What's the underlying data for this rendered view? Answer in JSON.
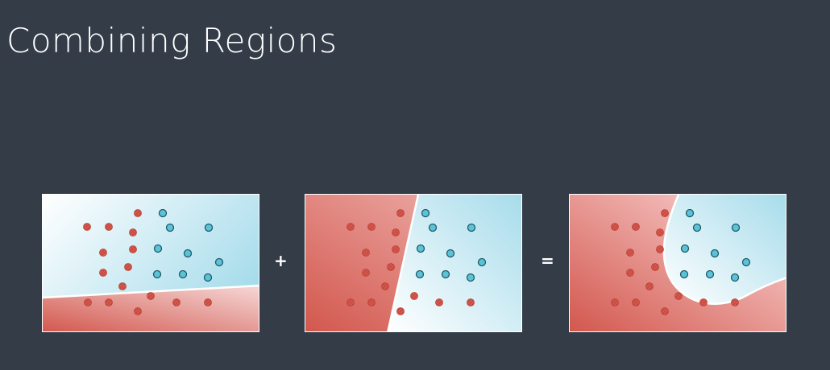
{
  "title": "Combining Regions",
  "operators": {
    "plus": "+",
    "equals": "="
  },
  "colors": {
    "background": "#333c47",
    "red_point": "#d6564b",
    "blue_point": "#5bc3d8",
    "red_region_dark": "#d2574d",
    "red_region_light": "#f6d8d7",
    "blue_region_dark": "#a7dceb",
    "blue_region_light": "#ffffff"
  },
  "panels": [
    {
      "id": "left",
      "red": [
        [
          55,
          40
        ],
        [
          82,
          40
        ],
        [
          118,
          23
        ],
        [
          112,
          47
        ],
        [
          75,
          72
        ],
        [
          112,
          68
        ],
        [
          106,
          90
        ],
        [
          75,
          97
        ],
        [
          99,
          114
        ],
        [
          56,
          134
        ],
        [
          82,
          134
        ],
        [
          118,
          145
        ],
        [
          134,
          126
        ],
        [
          166,
          134
        ],
        [
          205,
          134
        ]
      ],
      "blue": [
        [
          149,
          23
        ],
        [
          158,
          41
        ],
        [
          206,
          41
        ],
        [
          143,
          67
        ],
        [
          180,
          73
        ],
        [
          219,
          84
        ],
        [
          142,
          99
        ],
        [
          174,
          99
        ],
        [
          205,
          103
        ]
      ]
    },
    {
      "id": "mid",
      "red": [
        [
          56,
          40
        ],
        [
          82,
          40
        ],
        [
          118,
          23
        ],
        [
          112,
          47
        ],
        [
          75,
          72
        ],
        [
          112,
          68
        ],
        [
          106,
          90
        ],
        [
          75,
          97
        ],
        [
          99,
          114
        ],
        [
          56,
          134
        ],
        [
          82,
          134
        ],
        [
          135,
          126
        ],
        [
          166,
          134
        ],
        [
          205,
          134
        ],
        [
          118,
          145
        ]
      ],
      "blue": [
        [
          149,
          23
        ],
        [
          158,
          41
        ],
        [
          206,
          41
        ],
        [
          143,
          67
        ],
        [
          180,
          73
        ],
        [
          219,
          84
        ],
        [
          142,
          99
        ],
        [
          174,
          99
        ],
        [
          205,
          103
        ]
      ]
    },
    {
      "id": "right",
      "red": [
        [
          56,
          40
        ],
        [
          82,
          40
        ],
        [
          118,
          23
        ],
        [
          112,
          47
        ],
        [
          75,
          72
        ],
        [
          112,
          68
        ],
        [
          106,
          90
        ],
        [
          75,
          97
        ],
        [
          99,
          114
        ],
        [
          56,
          134
        ],
        [
          82,
          134
        ],
        [
          135,
          126
        ],
        [
          166,
          134
        ],
        [
          205,
          134
        ],
        [
          118,
          145
        ]
      ],
      "blue": [
        [
          149,
          23
        ],
        [
          158,
          41
        ],
        [
          206,
          41
        ],
        [
          143,
          67
        ],
        [
          180,
          73
        ],
        [
          219,
          84
        ],
        [
          142,
          99
        ],
        [
          174,
          99
        ],
        [
          205,
          103
        ]
      ]
    }
  ]
}
